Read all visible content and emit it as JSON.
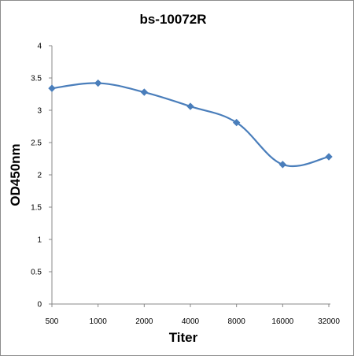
{
  "chart_data": {
    "type": "line",
    "title": "bs-10072R",
    "xlabel": "Titer",
    "ylabel": "OD450nm",
    "categories": [
      "500",
      "1000",
      "2000",
      "4000",
      "8000",
      "16000",
      "32000"
    ],
    "series": [
      {
        "values": [
          3.34,
          3.42,
          3.28,
          3.06,
          2.81,
          2.16,
          2.28
        ],
        "color": "#4a7ebb"
      }
    ],
    "ylim": [
      0,
      4
    ],
    "yticks": [
      "0",
      "0.5",
      "1",
      "1.5",
      "2",
      "2.5",
      "3",
      "3.5",
      "4"
    ],
    "grid": false,
    "legend": "none"
  }
}
